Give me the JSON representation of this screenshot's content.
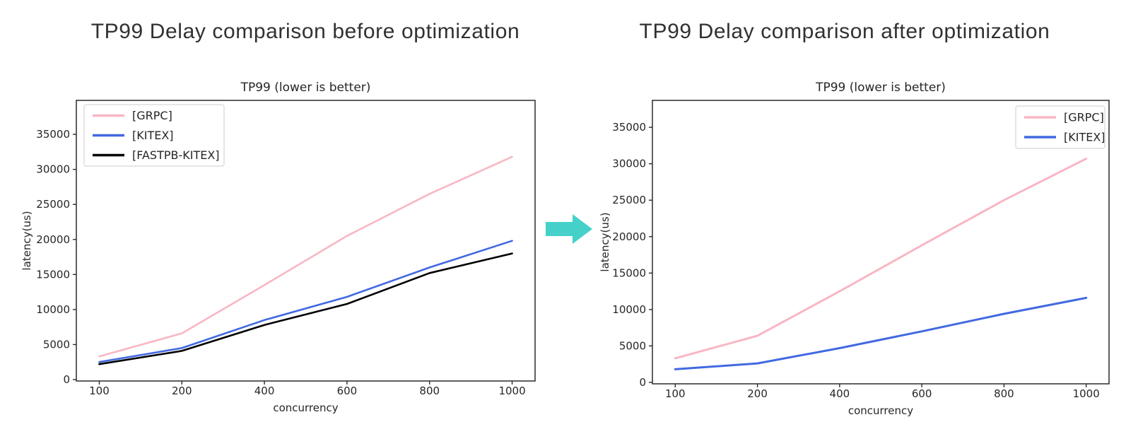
{
  "page": {
    "background": "#ffffff",
    "text_color": "#262626",
    "heading_color": "#313131",
    "spine_color": "#2a2a2a"
  },
  "arrow": {
    "name": "right-block-arrow",
    "color": "#45d1ca"
  },
  "chart_data": [
    {
      "type": "line",
      "figure_title": "TP99 Delay comparison before optimization",
      "title": "TP99 (lower is better)",
      "xlabel": "concurrency",
      "ylabel": "latency(us)",
      "categories": [
        "100",
        "200",
        "400",
        "600",
        "800",
        "1000"
      ],
      "series": [
        {
          "name": "[GRPC]",
          "color": "#f8b7c3",
          "values": [
            3300,
            6600,
            13500,
            20500,
            26500,
            31800
          ]
        },
        {
          "name": "[KITEX]",
          "color": "#4169e1",
          "values": [
            2500,
            4500,
            8500,
            11800,
            16000,
            19800
          ]
        },
        {
          "name": "[FASTPB-KITEX]",
          "color": "#000000",
          "values": [
            2200,
            4100,
            7800,
            10800,
            15200,
            18000
          ]
        }
      ],
      "yticks": [
        0,
        5000,
        10000,
        15000,
        20000,
        25000,
        30000,
        35000
      ],
      "ylim": [
        -200,
        39850
      ],
      "grid": false,
      "legend_position": "upper-left"
    },
    {
      "type": "line",
      "figure_title": "TP99 Delay comparison after optimization",
      "title": "TP99 (lower is better)",
      "xlabel": "concurrency",
      "ylabel": "latency(us)",
      "categories": [
        "100",
        "200",
        "400",
        "600",
        "800",
        "1000"
      ],
      "series": [
        {
          "name": "[GRPC]",
          "color": "#f8b7c3",
          "values": [
            3300,
            6400,
            12500,
            18800,
            25000,
            30700
          ]
        },
        {
          "name": "[KITEX]",
          "color": "#4169e1",
          "values": [
            1800,
            2600,
            4700,
            7000,
            9400,
            11600
          ]
        }
      ],
      "yticks": [
        0,
        5000,
        10000,
        15000,
        20000,
        25000,
        30000,
        35000
      ],
      "ylim": [
        -200,
        38700
      ],
      "grid": false,
      "legend_position": "upper-right"
    }
  ]
}
